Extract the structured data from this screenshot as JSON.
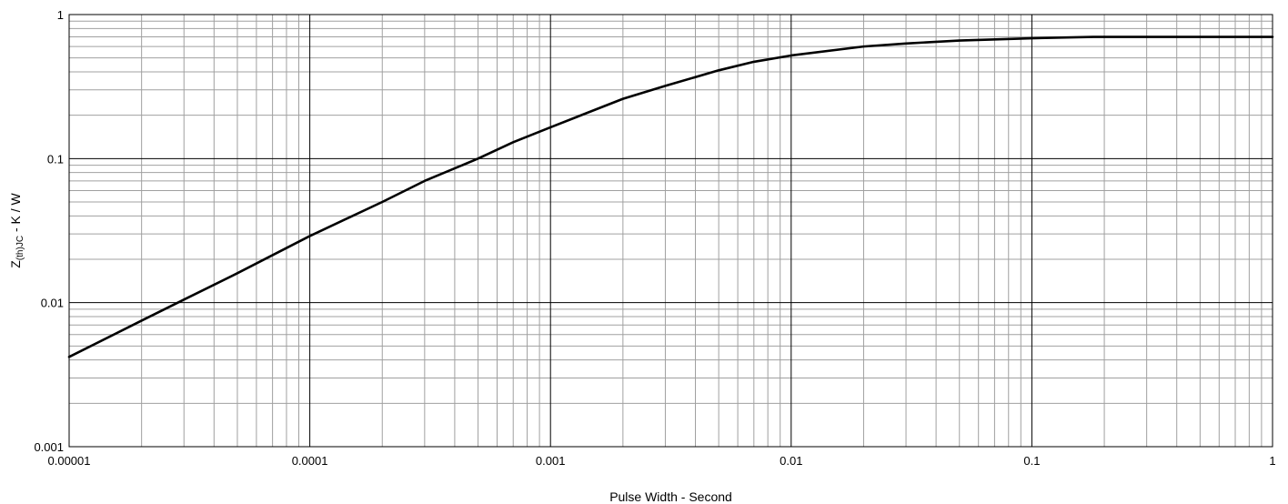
{
  "chart_data": {
    "type": "line",
    "title": "",
    "xlabel": "Pulse Width - Second",
    "ylabel": {
      "main": "Z",
      "subscript": "(th)JC",
      "suffix": " - K / W"
    },
    "x_scale": "log",
    "y_scale": "log",
    "xlim": [
      1e-05,
      1
    ],
    "ylim": [
      0.001,
      1
    ],
    "x_ticks": [
      {
        "value": 1e-05,
        "label": "0.00001"
      },
      {
        "value": 0.0001,
        "label": "0.0001"
      },
      {
        "value": 0.001,
        "label": "0.001"
      },
      {
        "value": 0.01,
        "label": "0.01"
      },
      {
        "value": 0.1,
        "label": "0.1"
      },
      {
        "value": 1,
        "label": "1"
      }
    ],
    "y_ticks": [
      {
        "value": 0.001,
        "label": "0.001"
      },
      {
        "value": 0.01,
        "label": "0.01"
      },
      {
        "value": 0.1,
        "label": "0.1"
      },
      {
        "value": 1,
        "label": "1"
      }
    ],
    "grid": {
      "major": true,
      "minor": true
    },
    "legend": "none",
    "colors": {
      "line": "#000000",
      "major_grid": "#000000",
      "minor_grid": "#a0a0a0",
      "frame": "#000000"
    },
    "series": [
      {
        "x": [
          1e-05,
          2e-05,
          3e-05,
          5e-05,
          0.0001,
          0.0002,
          0.0003,
          0.0005,
          0.0007,
          0.001,
          0.002,
          0.003,
          0.005,
          0.007,
          0.01,
          0.02,
          0.03,
          0.05,
          0.1,
          0.18,
          0.3,
          0.5,
          1
        ],
        "y": [
          0.0042,
          0.0075,
          0.0105,
          0.016,
          0.029,
          0.05,
          0.07,
          0.1,
          0.13,
          0.165,
          0.26,
          0.32,
          0.41,
          0.47,
          0.52,
          0.6,
          0.63,
          0.66,
          0.685,
          0.7,
          0.7,
          0.7,
          0.7
        ]
      }
    ]
  }
}
